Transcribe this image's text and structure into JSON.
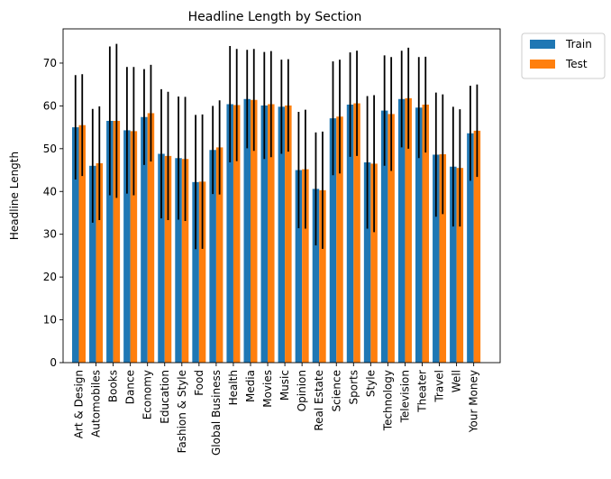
{
  "chart_data": {
    "type": "bar",
    "title": "Headline Length by Section",
    "xlabel": "",
    "ylabel": "Headline Length",
    "ylim": [
      0,
      78
    ],
    "yticks": [
      0,
      10,
      20,
      30,
      40,
      50,
      60,
      70
    ],
    "grid": false,
    "legend_position": "outside-top-right",
    "categories": [
      "Art & Design",
      "Automobiles",
      "Books",
      "Dance",
      "Economy",
      "Education",
      "Fashion & Style",
      "Food",
      "Global Business",
      "Health",
      "Media",
      "Movies",
      "Music",
      "Opinion",
      "Real Estate",
      "Science",
      "Sports",
      "Style",
      "Technology",
      "Television",
      "Theater",
      "Travel",
      "Well",
      "Your Money"
    ],
    "series": [
      {
        "name": "Train",
        "color": "#1f77b4",
        "values": [
          55.0,
          46.0,
          56.5,
          54.3,
          57.4,
          48.8,
          47.8,
          42.2,
          49.7,
          60.4,
          61.6,
          60.1,
          59.8,
          45.0,
          40.6,
          57.1,
          60.3,
          46.8,
          58.9,
          61.6,
          59.6,
          48.6,
          45.8,
          53.6
        ],
        "errors": [
          12.2,
          13.3,
          17.4,
          14.8,
          11.2,
          15.1,
          14.4,
          15.7,
          10.3,
          13.6,
          11.5,
          12.5,
          11.0,
          13.6,
          13.2,
          13.3,
          12.2,
          15.5,
          12.9,
          11.3,
          11.8,
          14.5,
          14.0,
          11.1
        ]
      },
      {
        "name": "Test",
        "color": "#ff7f0e",
        "values": [
          55.5,
          46.6,
          56.5,
          54.1,
          58.3,
          48.3,
          47.6,
          42.3,
          50.3,
          60.2,
          61.4,
          60.4,
          60.1,
          45.2,
          40.3,
          57.5,
          60.6,
          46.5,
          58.1,
          61.8,
          60.3,
          48.7,
          45.5,
          54.2
        ],
        "errors": [
          11.9,
          13.3,
          18.0,
          15.0,
          11.3,
          15.0,
          14.5,
          15.7,
          11.0,
          13.1,
          11.9,
          12.4,
          10.8,
          13.9,
          13.7,
          13.3,
          12.3,
          16.0,
          13.3,
          11.8,
          11.2,
          14.0,
          13.7,
          10.8
        ]
      }
    ]
  }
}
